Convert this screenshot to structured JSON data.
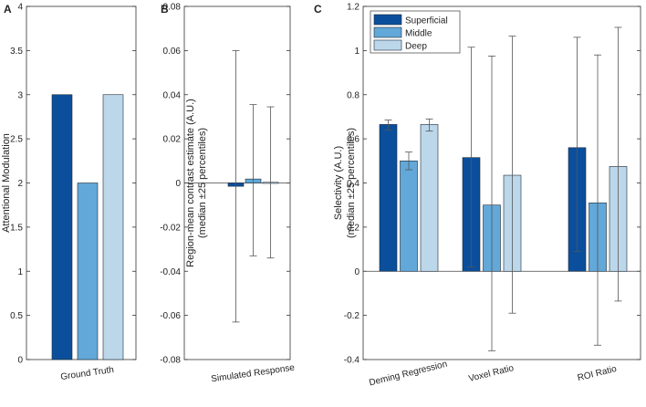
{
  "colors": {
    "superficial": "#0b4f9c",
    "middle": "#62a8d8",
    "deep": "#bcd7ea"
  },
  "chart_data": [
    {
      "type": "bar",
      "panel": "A",
      "ylabel": "Attentional Modulation",
      "ylim": [
        0,
        4
      ],
      "yticks": [
        0,
        0.5,
        1,
        1.5,
        2,
        2.5,
        3,
        3.5,
        4
      ],
      "ytick_labels": [
        "0",
        "0.5",
        "1",
        "1.5",
        "2",
        "2.5",
        "3",
        "3.5",
        "4"
      ],
      "categories": [
        "Ground Truth"
      ],
      "series": [
        {
          "name": "Superficial",
          "values": [
            3
          ]
        },
        {
          "name": "Middle",
          "values": [
            2
          ]
        },
        {
          "name": "Deep",
          "values": [
            3
          ]
        }
      ]
    },
    {
      "type": "bar",
      "panel": "B",
      "ylabel": "Region-mean contrast estimate (A.U.)",
      "ylabel2": "(median ±25 percentiles)",
      "ylim": [
        -0.08,
        0.08
      ],
      "yticks": [
        -0.08,
        -0.06,
        -0.04,
        -0.02,
        0,
        0.02,
        0.04,
        0.06,
        0.08
      ],
      "ytick_labels": [
        "-0.08",
        "-0.06",
        "-0.04",
        "-0.02",
        "0",
        "0.02",
        "0.04",
        "0.06",
        "0.08"
      ],
      "categories": [
        "Simulated Response"
      ],
      "series": [
        {
          "name": "Superficial",
          "values": [
            -0.0015
          ],
          "err_low": [
            -0.063
          ],
          "err_high": [
            0.06
          ]
        },
        {
          "name": "Middle",
          "values": [
            0.0018
          ],
          "err_low": [
            -0.033
          ],
          "err_high": [
            0.0355
          ]
        },
        {
          "name": "Deep",
          "values": [
            0.0003
          ],
          "err_low": [
            -0.034
          ],
          "err_high": [
            0.0345
          ]
        }
      ]
    },
    {
      "type": "bar",
      "panel": "C",
      "ylabel": "Selectivity (A.U.)",
      "ylabel2": "(median ±25 percentiles)",
      "ylim": [
        -0.4,
        1.2
      ],
      "yticks": [
        -0.4,
        -0.2,
        0,
        0.2,
        0.4,
        0.6,
        0.8,
        1,
        1.2
      ],
      "ytick_labels": [
        "-0.4",
        "-0.2",
        "0",
        "0.2",
        "0.4",
        "0.6",
        "0.8",
        "1",
        "1.2"
      ],
      "categories": [
        "Deming Regression",
        "Voxel Ratio",
        "ROI Ratio"
      ],
      "legend": {
        "position": "top-left",
        "entries": [
          "Superficial",
          "Middle",
          "Deep"
        ]
      },
      "series": [
        {
          "name": "Superficial",
          "values": [
            0.665,
            0.515,
            0.56
          ],
          "err_low": [
            0.64,
            0.02,
            0.09
          ],
          "err_high": [
            0.685,
            1.015,
            1.06
          ]
        },
        {
          "name": "Middle",
          "values": [
            0.5,
            0.3,
            0.31
          ],
          "err_low": [
            0.46,
            -0.36,
            -0.335
          ],
          "err_high": [
            0.54,
            0.975,
            0.98
          ]
        },
        {
          "name": "Deep",
          "values": [
            0.665,
            0.435,
            0.475
          ],
          "err_low": [
            0.635,
            -0.19,
            -0.135
          ],
          "err_high": [
            0.69,
            1.065,
            1.105
          ]
        }
      ]
    }
  ]
}
